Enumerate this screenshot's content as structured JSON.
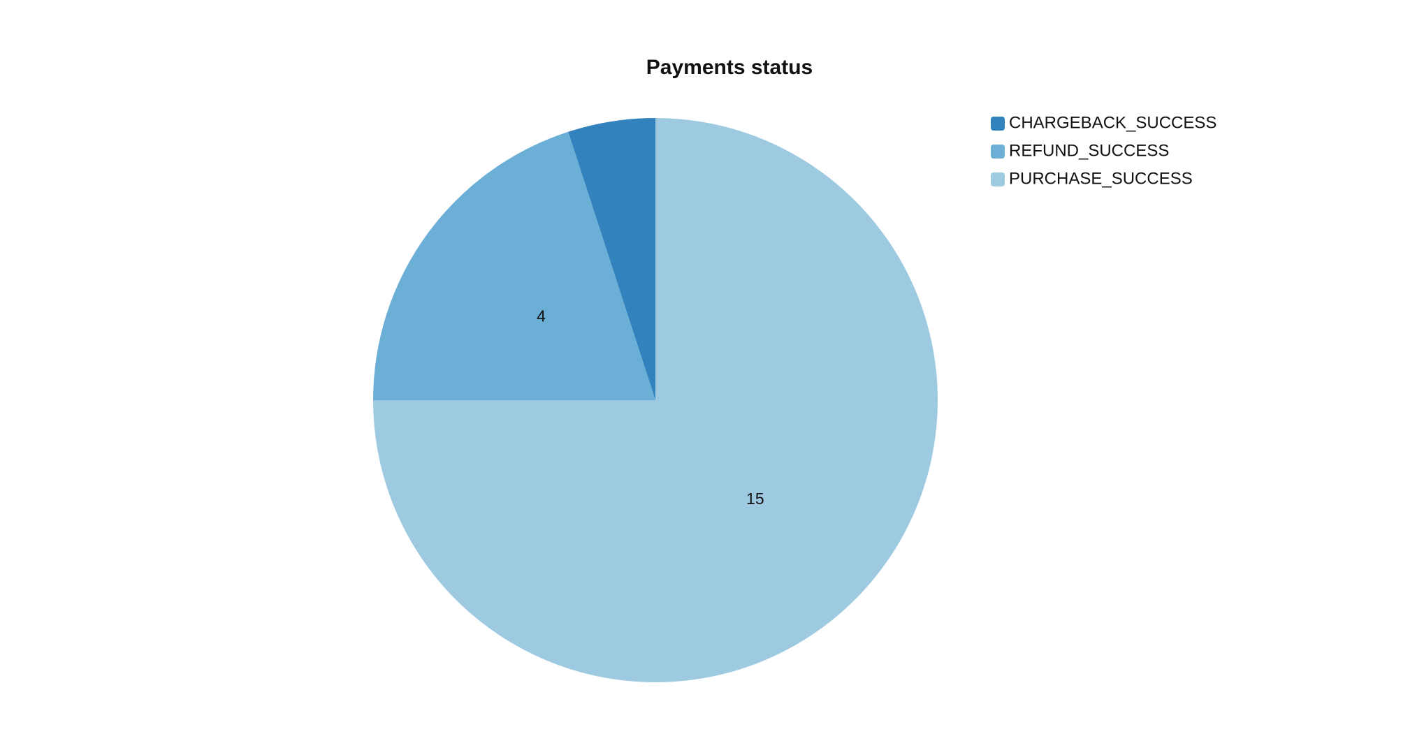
{
  "chart_data": {
    "type": "pie",
    "title": "Payments status",
    "slices": [
      {
        "label": "CHARGEBACK_SUCCESS",
        "value": 1,
        "color": "#3182bd",
        "value_label": ""
      },
      {
        "label": "REFUND_SUCCESS",
        "value": 4,
        "color": "#6baed6",
        "value_label": "4"
      },
      {
        "label": "PURCHASE_SUCCESS",
        "value": 15,
        "color": "#9ecae1",
        "value_label": "15"
      }
    ],
    "legend": {
      "position": "top-right",
      "items": [
        "CHARGEBACK_SUCCESS",
        "REFUND_SUCCESS",
        "PURCHASE_SUCCESS"
      ]
    }
  }
}
